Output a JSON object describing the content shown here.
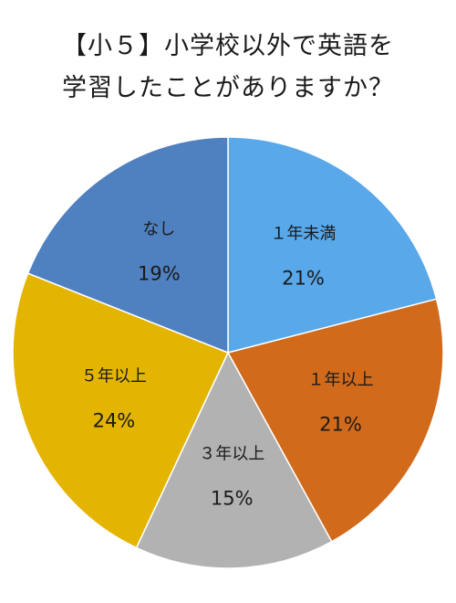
{
  "chart_data": {
    "type": "pie",
    "title_line1": "【小５】小学校以外で英語を",
    "title_line2": "学習したことがありますか？",
    "slices": [
      {
        "label": "１年未満",
        "value": 21,
        "value_label": "21%",
        "color": "#58a8ea"
      },
      {
        "label": "１年以上",
        "value": 21,
        "value_label": "21%",
        "color": "#d16a1b"
      },
      {
        "label": "３年以上",
        "value": 15,
        "value_label": "15%",
        "color": "#b2b2b2"
      },
      {
        "label": "５年以上",
        "value": 24,
        "value_label": "24%",
        "color": "#e3b400"
      },
      {
        "label": "なし",
        "value": 19,
        "value_label": "19%",
        "color": "#4f80c0"
      }
    ]
  }
}
